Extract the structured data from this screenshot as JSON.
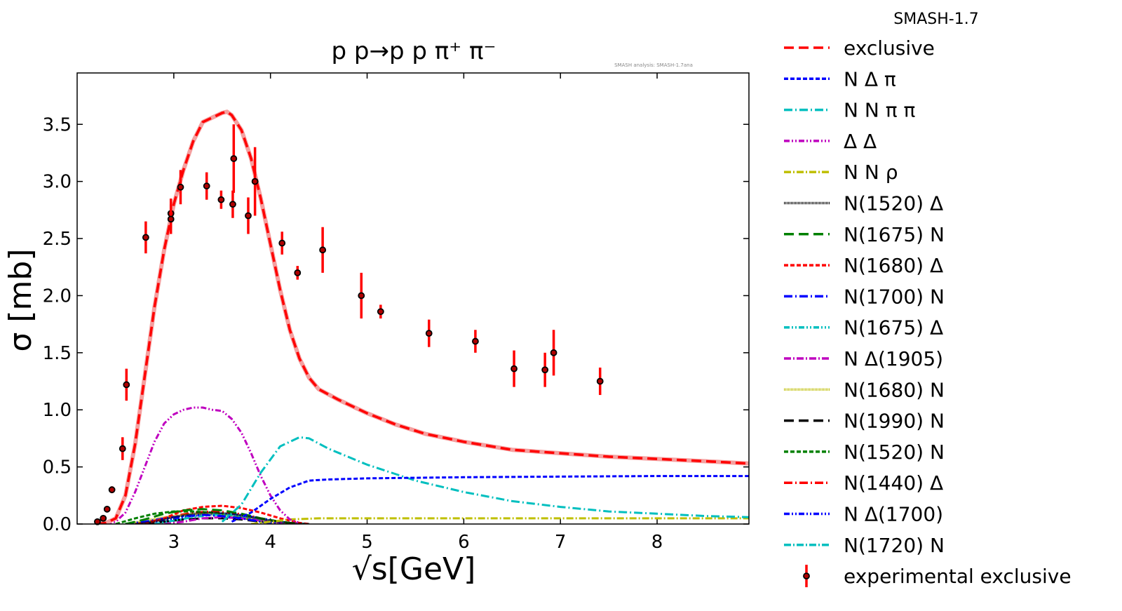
{
  "chart_data": {
    "type": "line",
    "version": "SMASH-1.7",
    "title": "p p→p p π⁺ π⁻",
    "subtitle": "SMASH analysis: SMASH-1.7ana",
    "xlabel": "√s[GeV]",
    "ylabel": "σ [mb]",
    "xlim": [
      2.0,
      8.95
    ],
    "ylim": [
      0.0,
      3.95
    ],
    "xticks": [
      3,
      4,
      5,
      6,
      7,
      8
    ],
    "yticks": [
      0.0,
      0.5,
      1.0,
      1.5,
      2.0,
      2.5,
      3.0,
      3.5
    ],
    "legend_position": "outside-right",
    "series": [
      {
        "name": "exclusive",
        "color": "#ff0000",
        "dash": "14,7",
        "x": [
          2.2,
          2.3,
          2.4,
          2.5,
          2.6,
          2.7,
          2.8,
          2.9,
          3.0,
          3.1,
          3.2,
          3.3,
          3.4,
          3.5,
          3.55,
          3.6,
          3.7,
          3.8,
          3.9,
          4.0,
          4.1,
          4.2,
          4.3,
          4.4,
          4.5,
          4.7,
          5.0,
          5.3,
          5.6,
          6.0,
          6.5,
          7.0,
          7.5,
          8.0,
          8.5,
          8.95
        ],
        "y": [
          0.0,
          0.01,
          0.05,
          0.25,
          0.7,
          1.3,
          1.9,
          2.4,
          2.8,
          3.1,
          3.35,
          3.52,
          3.56,
          3.6,
          3.61,
          3.58,
          3.45,
          3.2,
          2.85,
          2.45,
          2.05,
          1.7,
          1.45,
          1.28,
          1.18,
          1.09,
          0.97,
          0.87,
          0.79,
          0.72,
          0.65,
          0.62,
          0.59,
          0.57,
          0.55,
          0.53
        ]
      },
      {
        "name": "N Δ π",
        "color": "#0000ff",
        "dash": "6,3",
        "x": [
          3.6,
          3.8,
          4.0,
          4.2,
          4.4,
          4.6,
          5.0,
          5.5,
          6.0,
          7.0,
          8.0,
          8.95
        ],
        "y": [
          0.02,
          0.1,
          0.22,
          0.32,
          0.38,
          0.39,
          0.4,
          0.405,
          0.41,
          0.415,
          0.42,
          0.42
        ]
      },
      {
        "name": "N N π π",
        "color": "#00bfbf",
        "dash": "12,4,2,4",
        "x": [
          3.5,
          3.7,
          3.9,
          4.1,
          4.3,
          4.4,
          4.6,
          5.0,
          5.5,
          6.0,
          6.5,
          7.0,
          7.5,
          8.0,
          8.5,
          8.95
        ],
        "y": [
          0.02,
          0.17,
          0.45,
          0.68,
          0.76,
          0.75,
          0.66,
          0.52,
          0.38,
          0.28,
          0.2,
          0.15,
          0.11,
          0.09,
          0.07,
          0.06
        ]
      },
      {
        "name": "Δ Δ",
        "color": "#bf00bf",
        "dash": "8,3,2,3,2,3",
        "x": [
          2.3,
          2.4,
          2.5,
          2.6,
          2.7,
          2.8,
          2.9,
          3.0,
          3.1,
          3.2,
          3.3,
          3.4,
          3.5,
          3.6,
          3.7,
          3.8,
          3.9,
          4.0,
          4.1,
          4.2,
          4.3
        ],
        "y": [
          0.0,
          0.02,
          0.1,
          0.28,
          0.5,
          0.72,
          0.88,
          0.96,
          1.0,
          1.02,
          1.02,
          1.0,
          0.99,
          0.92,
          0.8,
          0.62,
          0.42,
          0.25,
          0.12,
          0.04,
          0.01
        ]
      },
      {
        "name": "N N ρ",
        "color": "#bfbf00",
        "dash": "10,3,2,3",
        "x": [
          3.8,
          4.0,
          4.2,
          4.5,
          5.0,
          6.0,
          7.0,
          8.0,
          8.95
        ],
        "y": [
          0.0,
          0.02,
          0.04,
          0.05,
          0.05,
          0.05,
          0.05,
          0.05,
          0.05
        ]
      },
      {
        "name": "N(1520) Δ",
        "color": "#000000",
        "dash": "1,1",
        "x": [
          2.6,
          2.8,
          3.0,
          3.2,
          3.4,
          3.6,
          3.8,
          4.0,
          4.2,
          4.4
        ],
        "y": [
          0.0,
          0.02,
          0.06,
          0.09,
          0.1,
          0.09,
          0.06,
          0.03,
          0.01,
          0.0
        ]
      },
      {
        "name": "N(1675) N",
        "color": "#008000",
        "dash": "14,7",
        "x": [
          2.5,
          2.7,
          2.9,
          3.1,
          3.3,
          3.5,
          3.7,
          3.9,
          4.1,
          4.3
        ],
        "y": [
          0.0,
          0.04,
          0.09,
          0.12,
          0.13,
          0.12,
          0.09,
          0.05,
          0.02,
          0.0
        ]
      },
      {
        "name": "N(1680) Δ",
        "color": "#ff0000",
        "dash": "6,3",
        "x": [
          2.7,
          2.9,
          3.1,
          3.3,
          3.5,
          3.7,
          3.9,
          4.1,
          4.3,
          4.4
        ],
        "y": [
          0.0,
          0.05,
          0.12,
          0.15,
          0.16,
          0.14,
          0.1,
          0.05,
          0.01,
          0.0
        ]
      },
      {
        "name": "N(1700) N",
        "color": "#0000ff",
        "dash": "12,4,2,4",
        "x": [
          2.5,
          2.7,
          2.9,
          3.1,
          3.3,
          3.5,
          3.7,
          3.9,
          4.1
        ],
        "y": [
          0.0,
          0.02,
          0.05,
          0.07,
          0.08,
          0.07,
          0.05,
          0.02,
          0.0
        ]
      },
      {
        "name": "N(1675) Δ",
        "color": "#00bfbf",
        "dash": "8,3,2,3,2,3",
        "x": [
          2.8,
          3.0,
          3.2,
          3.4,
          3.6,
          3.8,
          4.0,
          4.2,
          4.4
        ],
        "y": [
          0.0,
          0.03,
          0.06,
          0.08,
          0.08,
          0.06,
          0.03,
          0.01,
          0.0
        ]
      },
      {
        "name": "N Δ(1905)",
        "color": "#bf00bf",
        "dash": "10,3,2,3",
        "x": [
          2.9,
          3.1,
          3.3,
          3.5,
          3.7,
          3.9,
          4.1,
          4.3
        ],
        "y": [
          0.0,
          0.02,
          0.05,
          0.06,
          0.05,
          0.03,
          0.01,
          0.0
        ]
      },
      {
        "name": "N(1680) N",
        "color": "#bfbf00",
        "dash": "1,1",
        "x": [
          2.5,
          2.7,
          2.9,
          3.1,
          3.3,
          3.5,
          3.7,
          3.9,
          4.1
        ],
        "y": [
          0.0,
          0.03,
          0.06,
          0.08,
          0.09,
          0.08,
          0.06,
          0.03,
          0.0
        ]
      },
      {
        "name": "N(1990) N",
        "color": "#000000",
        "dash": "14,7",
        "x": [
          2.7,
          2.9,
          3.1,
          3.3,
          3.5,
          3.7,
          3.9,
          4.1
        ],
        "y": [
          0.0,
          0.02,
          0.04,
          0.05,
          0.05,
          0.04,
          0.02,
          0.0
        ]
      },
      {
        "name": "N(1520) N",
        "color": "#008000",
        "dash": "6,3",
        "x": [
          2.4,
          2.6,
          2.8,
          3.0,
          3.2,
          3.4,
          3.6,
          3.8,
          4.0
        ],
        "y": [
          0.0,
          0.05,
          0.09,
          0.11,
          0.11,
          0.1,
          0.07,
          0.04,
          0.01
        ]
      },
      {
        "name": "N(1440) Δ",
        "color": "#ff0000",
        "dash": "12,4,2,4",
        "x": [
          2.6,
          2.8,
          3.0,
          3.2,
          3.4,
          3.6,
          3.8,
          4.0,
          4.2
        ],
        "y": [
          0.0,
          0.03,
          0.07,
          0.1,
          0.11,
          0.1,
          0.07,
          0.03,
          0.0
        ]
      },
      {
        "name": "N Δ(1700)",
        "color": "#0000ff",
        "dash": "8,3,2,3,2,3",
        "x": [
          2.7,
          2.9,
          3.1,
          3.3,
          3.5,
          3.7,
          3.9,
          4.1,
          4.3
        ],
        "y": [
          0.0,
          0.03,
          0.06,
          0.08,
          0.09,
          0.08,
          0.05,
          0.02,
          0.0
        ]
      },
      {
        "name": "N(1720) N",
        "color": "#00bfbf",
        "dash": "10,3,2,3",
        "x": [
          2.6,
          2.8,
          3.0,
          3.2,
          3.4,
          3.6,
          3.8,
          4.0,
          4.2
        ],
        "y": [
          0.0,
          0.03,
          0.06,
          0.08,
          0.09,
          0.08,
          0.06,
          0.03,
          0.0
        ]
      }
    ],
    "experimental": {
      "name": "experimental exclusive",
      "color": "#ff0000",
      "marker_color": "#000000",
      "points": [
        {
          "x": 2.21,
          "y": 0.02,
          "err": 0.01
        },
        {
          "x": 2.27,
          "y": 0.05,
          "err": 0.01
        },
        {
          "x": 2.31,
          "y": 0.13,
          "err": 0.02
        },
        {
          "x": 2.36,
          "y": 0.3,
          "err": 0.03
        },
        {
          "x": 2.47,
          "y": 0.66,
          "err": 0.1
        },
        {
          "x": 2.51,
          "y": 1.22,
          "err": 0.14
        },
        {
          "x": 2.71,
          "y": 2.51,
          "err": 0.14
        },
        {
          "x": 2.97,
          "y": 2.72,
          "err": 0.13
        },
        {
          "x": 2.97,
          "y": 2.67,
          "err": 0.13
        },
        {
          "x": 3.07,
          "y": 2.95,
          "err": 0.15
        },
        {
          "x": 3.34,
          "y": 2.96,
          "err": 0.12
        },
        {
          "x": 3.49,
          "y": 2.84,
          "err": 0.08
        },
        {
          "x": 3.61,
          "y": 2.8,
          "err": 0.12
        },
        {
          "x": 3.62,
          "y": 3.2,
          "err": 0.3
        },
        {
          "x": 3.77,
          "y": 2.7,
          "err": 0.16
        },
        {
          "x": 3.84,
          "y": 3.0,
          "err": 0.3
        },
        {
          "x": 4.12,
          "y": 2.46,
          "err": 0.1
        },
        {
          "x": 4.28,
          "y": 2.2,
          "err": 0.06
        },
        {
          "x": 4.54,
          "y": 2.4,
          "err": 0.2
        },
        {
          "x": 4.94,
          "y": 2.0,
          "err": 0.2
        },
        {
          "x": 5.14,
          "y": 1.86,
          "err": 0.06
        },
        {
          "x": 5.64,
          "y": 1.67,
          "err": 0.12
        },
        {
          "x": 6.12,
          "y": 1.6,
          "err": 0.1
        },
        {
          "x": 6.52,
          "y": 1.36,
          "err": 0.16
        },
        {
          "x": 6.84,
          "y": 1.35,
          "err": 0.15
        },
        {
          "x": 6.93,
          "y": 1.5,
          "err": 0.2
        },
        {
          "x": 7.41,
          "y": 1.25,
          "err": 0.12
        }
      ]
    }
  }
}
